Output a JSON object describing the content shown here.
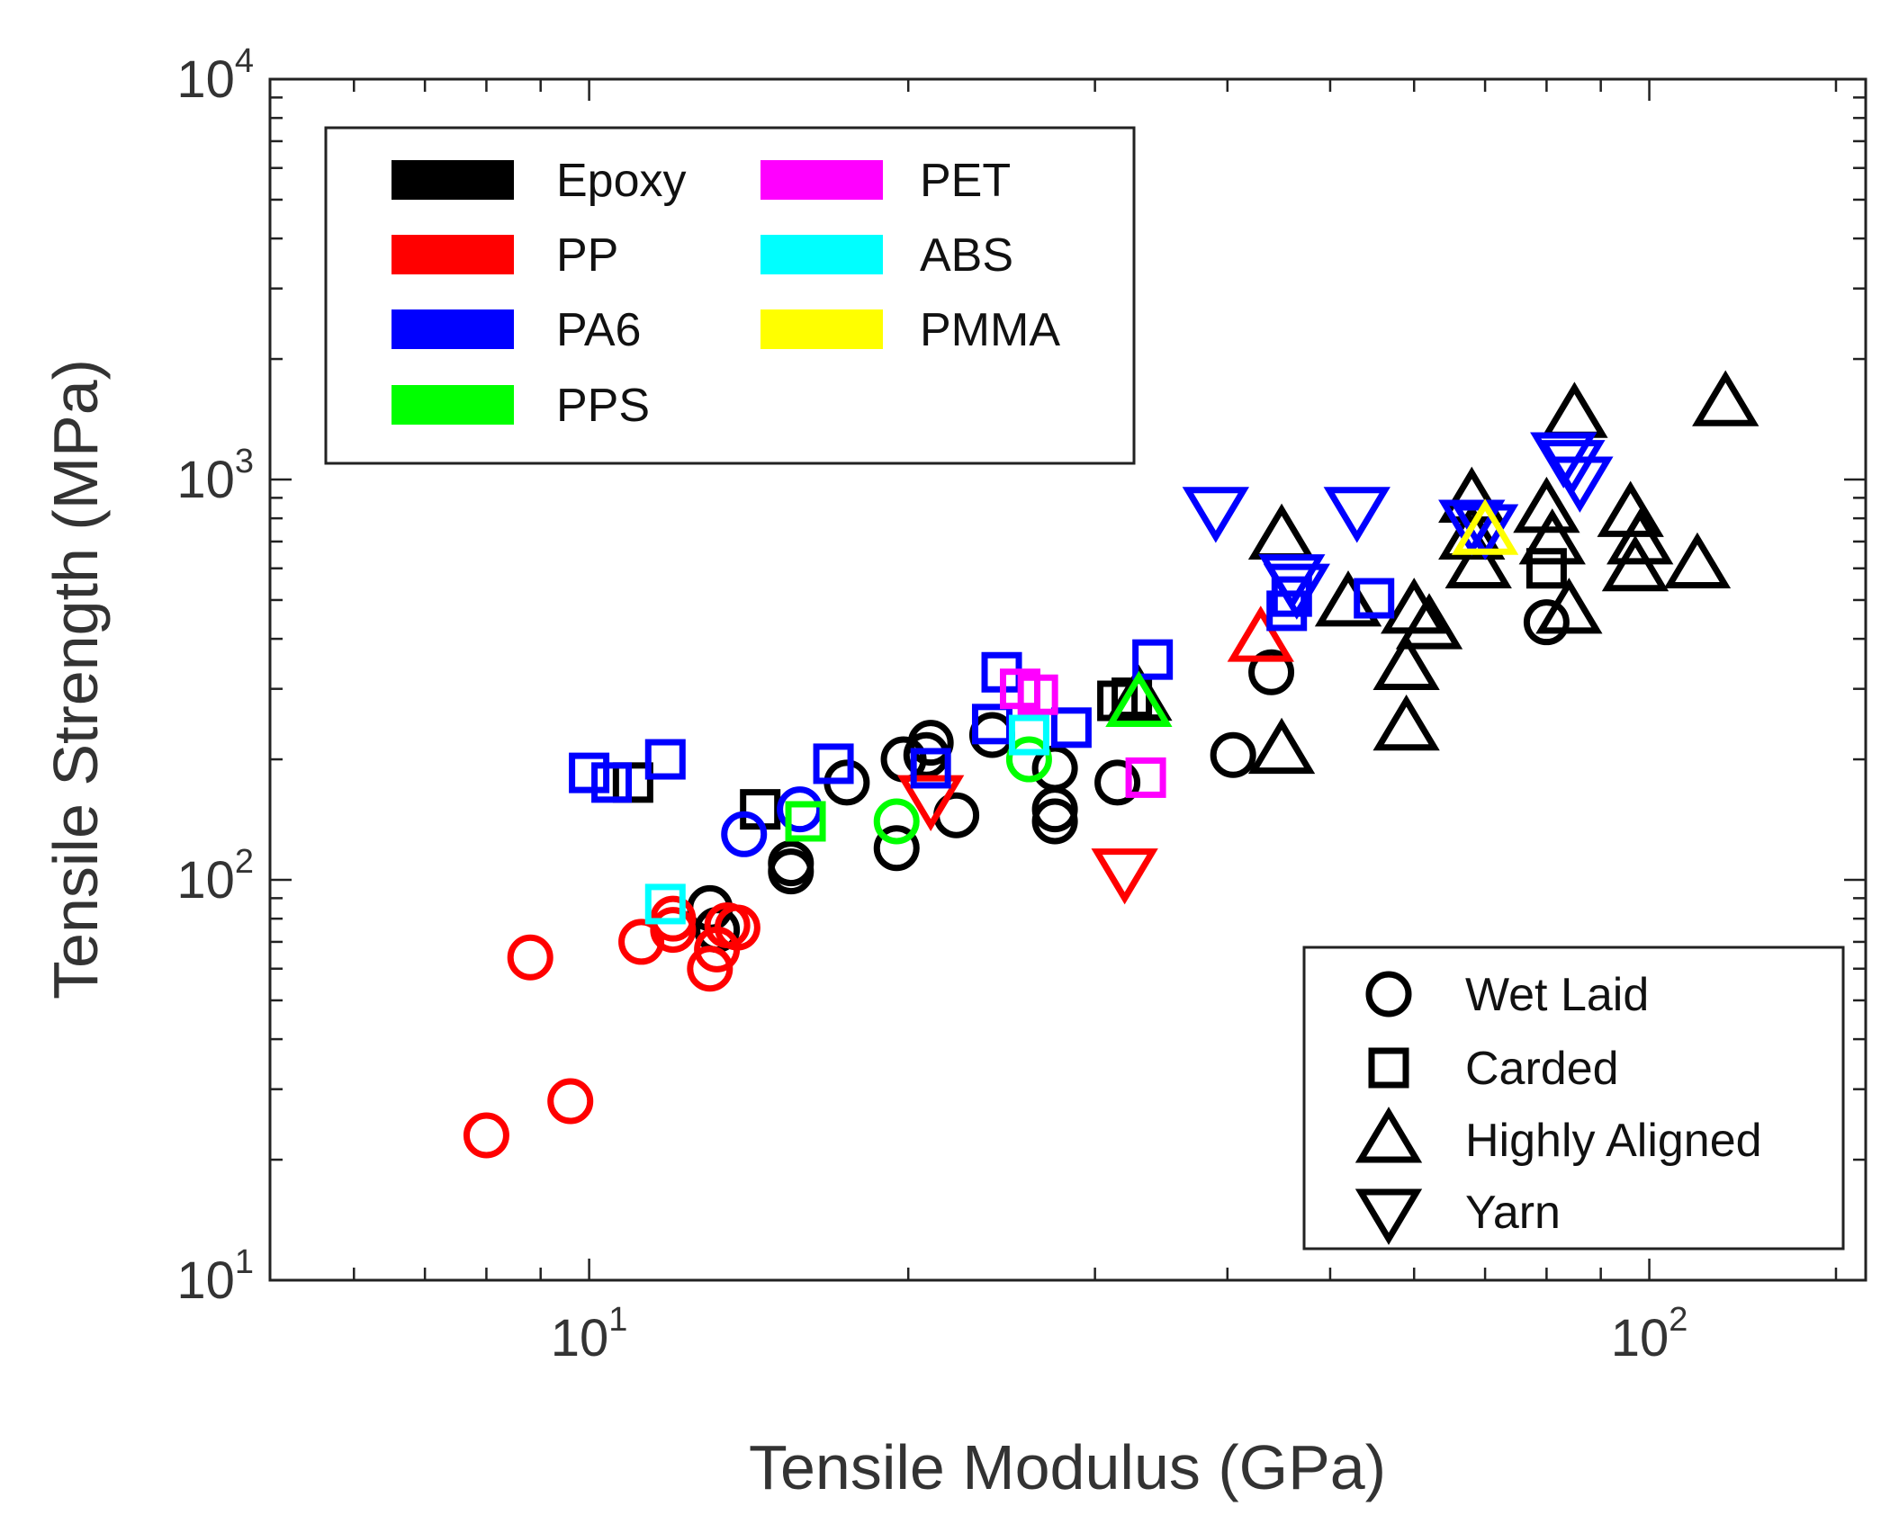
{
  "chart_data": {
    "type": "scatter",
    "x_scale": "log",
    "y_scale": "log",
    "xlim": [
      5,
      160
    ],
    "ylim": [
      10,
      10000
    ],
    "xlabel": "Tensile Modulus (GPa)",
    "ylabel": "Tensile Strength (MPa)",
    "x_ticks": [
      {
        "value": 10,
        "base": "10",
        "exp": "1"
      },
      {
        "value": 100,
        "base": "10",
        "exp": "2"
      }
    ],
    "y_ticks": [
      {
        "value": 10,
        "base": "10",
        "exp": "1"
      },
      {
        "value": 100,
        "base": "10",
        "exp": "2"
      },
      {
        "value": 1000,
        "base": "10",
        "exp": "3"
      },
      {
        "value": 10000,
        "base": "10",
        "exp": "4"
      }
    ],
    "grid": false,
    "matrix_legend": {
      "placement": "top-left",
      "items": [
        {
          "name": "Epoxy",
          "color": "#000000"
        },
        {
          "name": "PP",
          "color": "#ff0000"
        },
        {
          "name": "PA6",
          "color": "#0000ff"
        },
        {
          "name": "PPS",
          "color": "#00ff00"
        },
        {
          "name": "PET",
          "color": "#ff00ff"
        },
        {
          "name": "ABS",
          "color": "#00ffff"
        },
        {
          "name": "PMMA",
          "color": "#ffff00"
        }
      ]
    },
    "process_legend": {
      "placement": "bottom-right",
      "items": [
        {
          "name": "Wet Laid",
          "marker": "circle"
        },
        {
          "name": "Carded",
          "marker": "square"
        },
        {
          "name": "Highly Aligned",
          "marker": "triangle-up"
        },
        {
          "name": "Yarn",
          "marker": "triangle-down"
        }
      ]
    },
    "series": [
      {
        "name": "Epoxy",
        "marker": "circle",
        "color": "#000000",
        "points": [
          [
            13,
            85
          ],
          [
            13.2,
            75
          ],
          [
            15.5,
            105
          ],
          [
            15.5,
            110
          ],
          [
            17.5,
            175
          ],
          [
            19.5,
            120
          ],
          [
            19.8,
            200
          ],
          [
            20.8,
            205
          ],
          [
            21,
            220
          ],
          [
            22.2,
            145
          ],
          [
            24,
            230
          ],
          [
            27.5,
            190
          ],
          [
            27.5,
            150
          ],
          [
            27.5,
            140
          ],
          [
            31.5,
            175
          ],
          [
            40.5,
            205
          ],
          [
            44,
            330
          ],
          [
            80,
            440
          ]
        ]
      },
      {
        "name": "Epoxy",
        "marker": "square",
        "color": "#000000",
        "points": [
          [
            11,
            175
          ],
          [
            14.5,
            150
          ],
          [
            31.5,
            280
          ],
          [
            32.5,
            285
          ],
          [
            80,
            600
          ]
        ]
      },
      {
        "name": "Epoxy",
        "marker": "triangle-up",
        "color": "#000000",
        "points": [
          [
            33,
            285
          ],
          [
            45,
            210
          ],
          [
            45,
            720
          ],
          [
            52,
            490
          ],
          [
            59,
            240
          ],
          [
            59,
            340
          ],
          [
            60,
            470
          ],
          [
            62,
            430
          ],
          [
            68,
            890
          ],
          [
            68,
            720
          ],
          [
            69,
            610
          ],
          [
            80,
            840
          ],
          [
            81,
            700
          ],
          [
            84,
            470
          ],
          [
            85,
            1450
          ],
          [
            96,
            820
          ],
          [
            97,
            600
          ],
          [
            98,
            700
          ],
          [
            111,
            610
          ],
          [
            118,
            1550
          ]
        ]
      },
      {
        "name": "PP",
        "marker": "circle",
        "color": "#ff0000",
        "points": [
          [
            8,
            23
          ],
          [
            8.8,
            64
          ],
          [
            9.6,
            28
          ],
          [
            11.2,
            70
          ],
          [
            12,
            75
          ],
          [
            12,
            80
          ],
          [
            13,
            60
          ],
          [
            13.2,
            67
          ],
          [
            13.5,
            77
          ],
          [
            13.8,
            76
          ]
        ]
      },
      {
        "name": "PP",
        "marker": "triangle-up",
        "color": "#ff0000",
        "points": [
          [
            43,
            400
          ]
        ]
      },
      {
        "name": "PP",
        "marker": "triangle-down",
        "color": "#ff0000",
        "points": [
          [
            21,
            160
          ],
          [
            32,
            105
          ]
        ]
      },
      {
        "name": "PA6",
        "marker": "circle",
        "color": "#0000ff",
        "points": [
          [
            14,
            130
          ],
          [
            15.8,
            150
          ]
        ]
      },
      {
        "name": "PA6",
        "marker": "square",
        "color": "#0000ff",
        "points": [
          [
            10,
            185
          ],
          [
            10.5,
            175
          ],
          [
            11.8,
            200
          ],
          [
            17,
            195
          ],
          [
            21,
            190
          ],
          [
            24,
            245
          ],
          [
            24.5,
            330
          ],
          [
            28.5,
            240
          ],
          [
            34,
            355
          ],
          [
            45.5,
            470
          ],
          [
            46,
            510
          ],
          [
            55,
            505
          ]
        ]
      },
      {
        "name": "PA6",
        "marker": "triangle-down",
        "color": "#0000ff",
        "points": [
          [
            39,
            840
          ],
          [
            46,
            570
          ],
          [
            46.5,
            540
          ],
          [
            53,
            840
          ],
          [
            68,
            780
          ],
          [
            70,
            760
          ],
          [
            83,
            1150
          ],
          [
            84.5,
            1100
          ],
          [
            86,
            1000
          ]
        ]
      },
      {
        "name": "PPS",
        "marker": "circle",
        "color": "#00ff00",
        "points": [
          [
            19.5,
            140
          ],
          [
            26,
            200
          ]
        ]
      },
      {
        "name": "PPS",
        "marker": "square",
        "color": "#00ff00",
        "points": [
          [
            16,
            140
          ]
        ]
      },
      {
        "name": "PPS",
        "marker": "triangle-up",
        "color": "#00ff00",
        "points": [
          [
            33,
            275
          ]
        ]
      },
      {
        "name": "PET",
        "marker": "square",
        "color": "#ff00ff",
        "points": [
          [
            25.5,
            300
          ],
          [
            26.5,
            290
          ],
          [
            33.5,
            180
          ]
        ]
      },
      {
        "name": "ABS",
        "marker": "square",
        "color": "#00ffff",
        "points": [
          [
            11.8,
            87
          ],
          [
            26,
            230
          ]
        ]
      },
      {
        "name": "PMMA",
        "marker": "triangle-up",
        "color": "#ffff00",
        "points": [
          [
            70,
            740
          ]
        ]
      }
    ]
  }
}
